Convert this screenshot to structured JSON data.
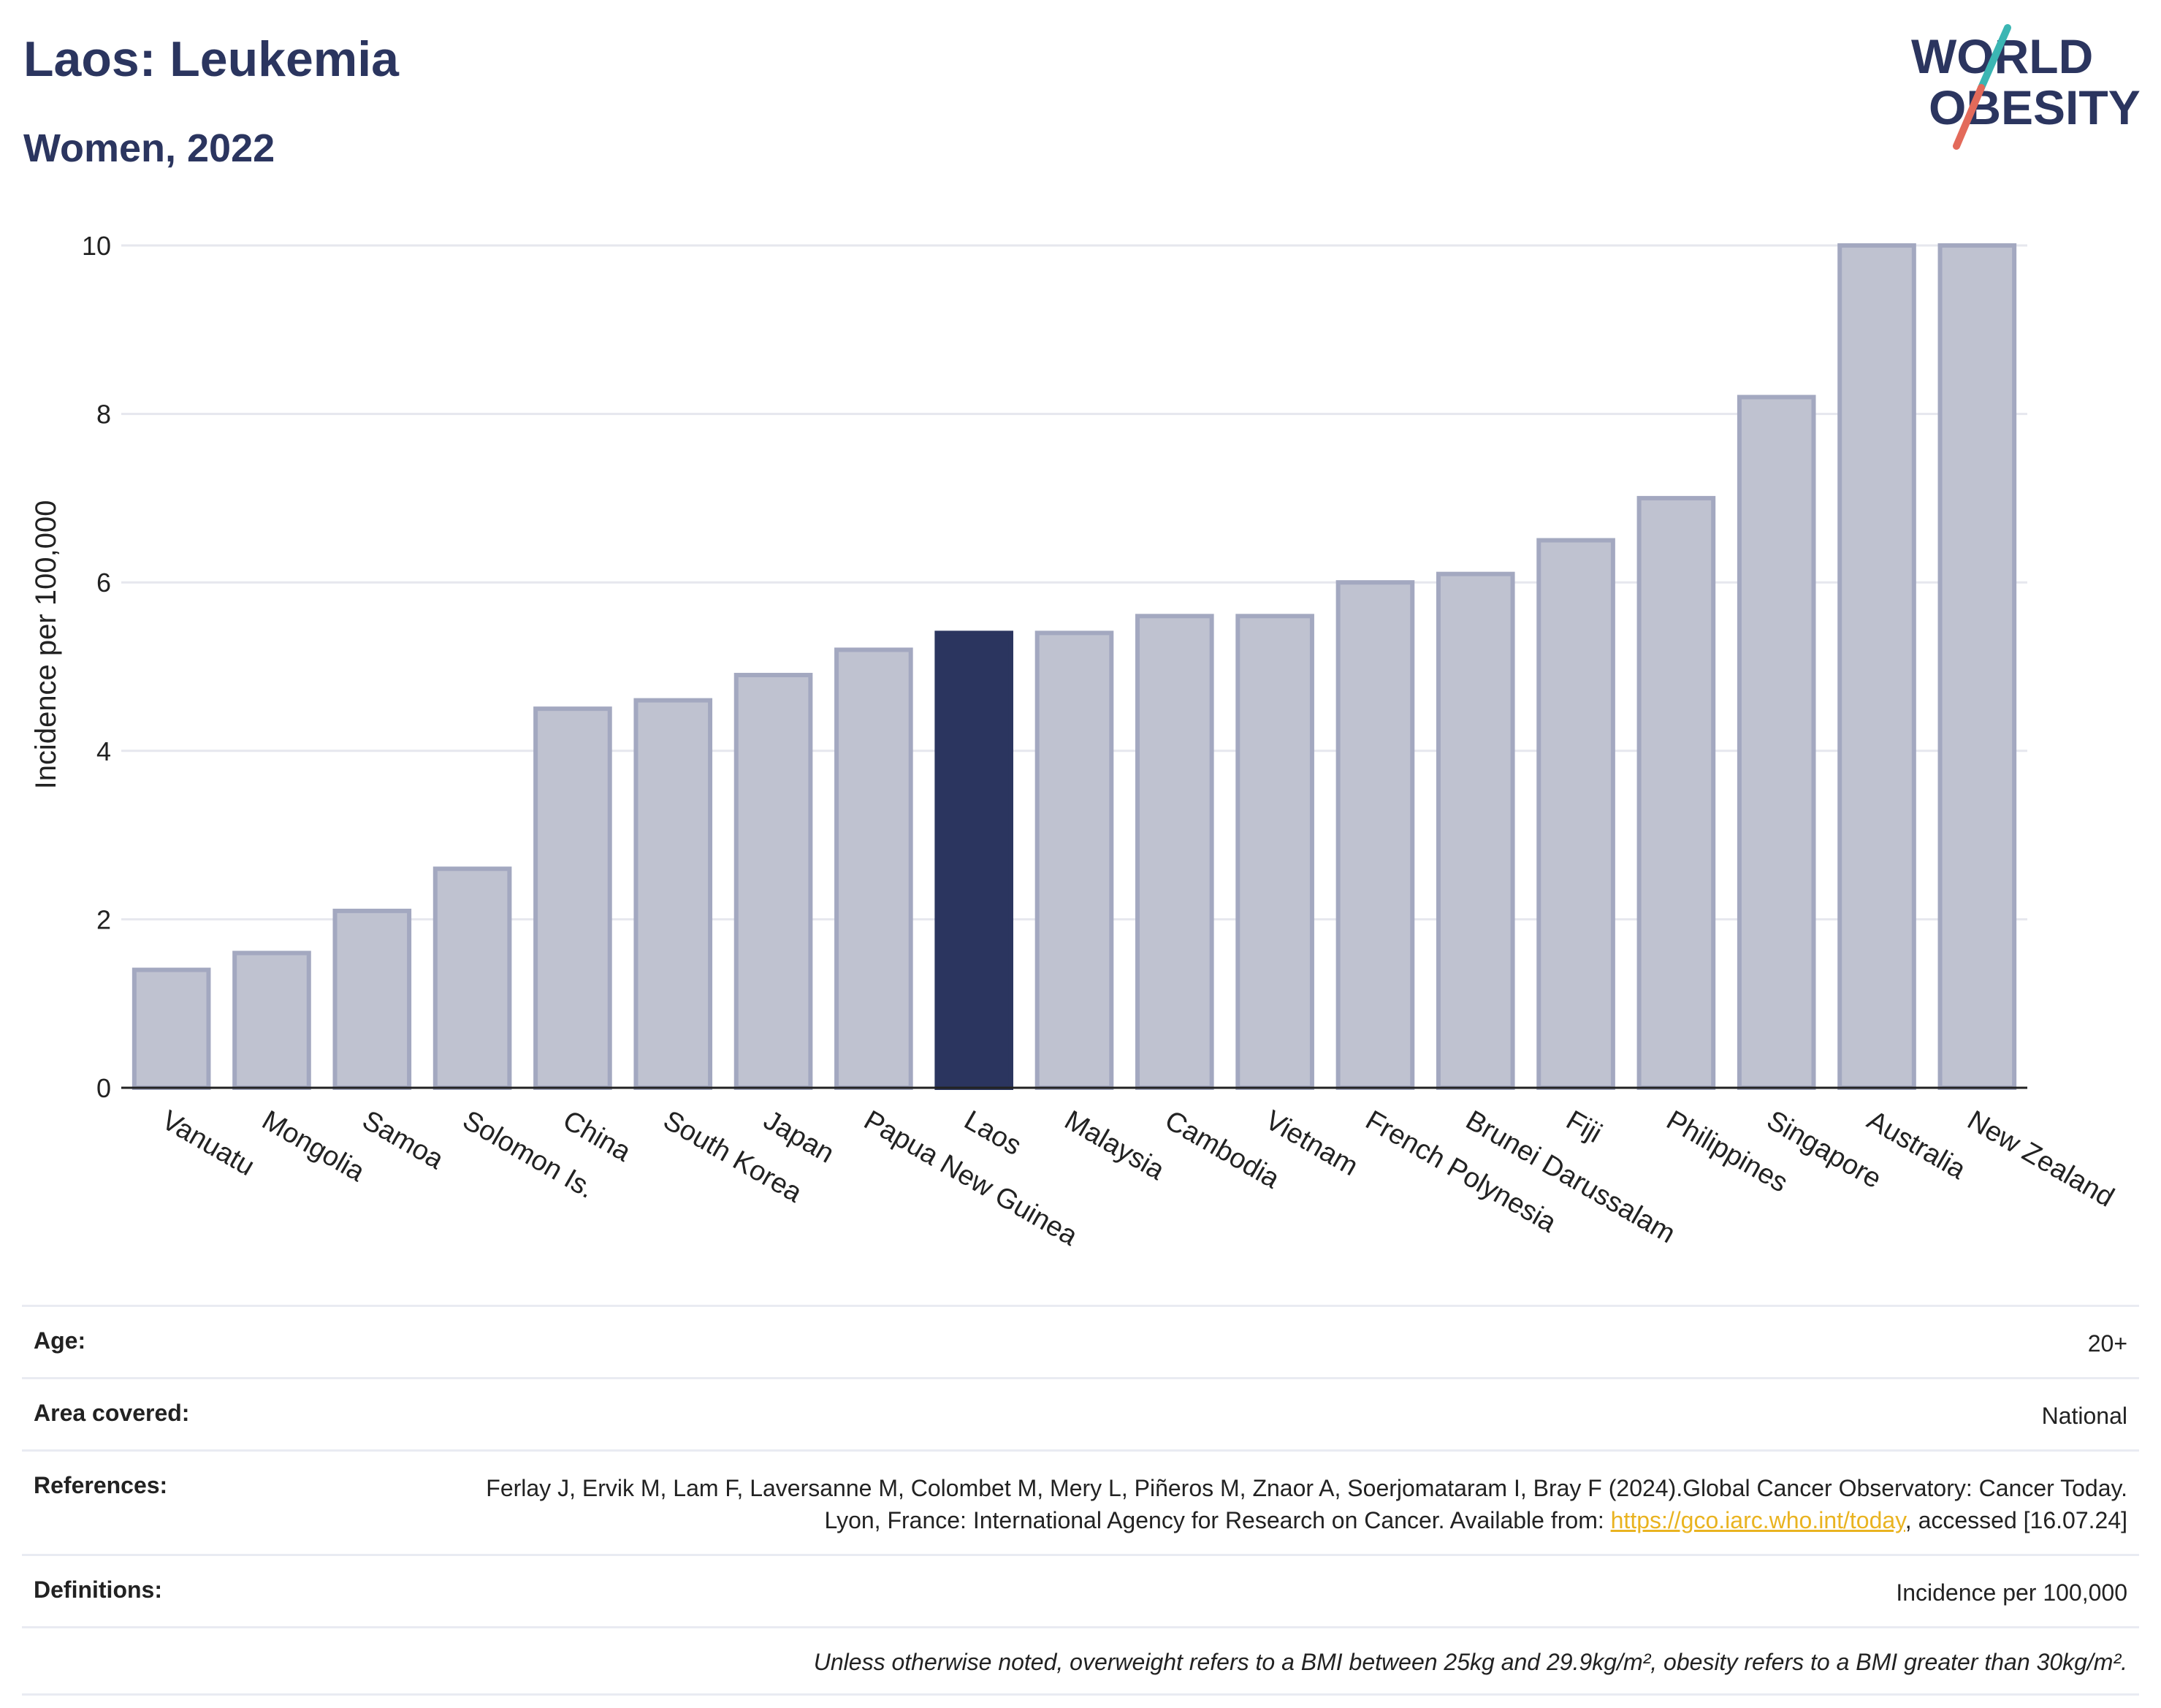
{
  "header": {
    "title": "Laos: Leukemia",
    "subtitle": "Women, 2022",
    "logo_line1": "WORLD",
    "logo_line2": "OBESITY"
  },
  "chart_data": {
    "type": "bar",
    "ylabel": "Incidence per 100,000",
    "ylim": [
      0,
      10
    ],
    "yticks": [
      0,
      2,
      4,
      6,
      8,
      10
    ],
    "grid": true,
    "highlight": "Laos",
    "categories": [
      "Vanuatu",
      "Mongolia",
      "Samoa",
      "Solomon Is.",
      "China",
      "South Korea",
      "Japan",
      "Papua New Guinea",
      "Laos",
      "Malaysia",
      "Cambodia",
      "Vietnam",
      "French Polynesia",
      "Brunei Darussalam",
      "Fiji",
      "Philippines",
      "Singapore",
      "Australia",
      "New Zealand"
    ],
    "values": [
      1.4,
      1.6,
      2.1,
      2.6,
      4.5,
      4.6,
      4.9,
      5.2,
      5.4,
      5.4,
      5.6,
      5.6,
      6.0,
      6.1,
      6.5,
      7.0,
      8.2,
      10.0,
      10.0
    ],
    "colors": {
      "bar": "#bfc2d0",
      "bar_border": "#a3a8c0",
      "highlight": "#2b355f",
      "axis": "#222222",
      "grid": "#e6e7ee"
    }
  },
  "info": {
    "age_label": "Age:",
    "age_value": "20+",
    "area_label": "Area covered:",
    "area_value": "National",
    "references_label": "References:",
    "references_text_1": "Ferlay J, Ervik M, Lam F, Laversanne M, Colombet M, Mery L, Piñeros M, Znaor A, Soerjomataram I, Bray F (2024).Global Cancer Observatory: Cancer Today. Lyon, France: International Agency for Research on Cancer. Available from: ",
    "references_link": "https://gco.iarc.who.int/today",
    "references_text_2": ", accessed [16.07.24]",
    "definitions_label": "Definitions:",
    "definitions_value": "Incidence per 100,000",
    "note": "Unless otherwise noted, overweight refers to a BMI between 25kg and 29.9kg/m², obesity refers to a BMI greater than 30kg/m²."
  }
}
